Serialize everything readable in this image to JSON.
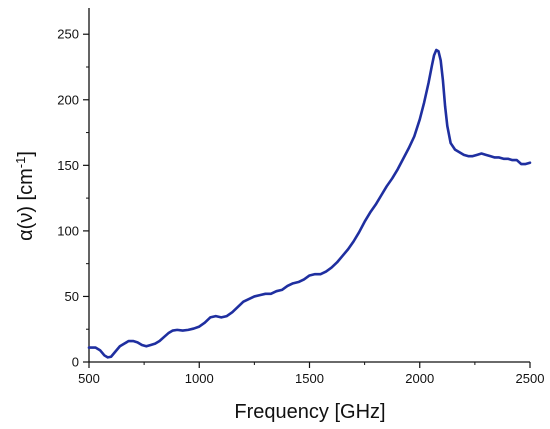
{
  "chart_data": {
    "type": "line",
    "title": "",
    "xlabel": "Frequency [GHz]",
    "ylabel_main": "α(ν) [cm",
    "ylabel_sup": "-1",
    "ylabel_close": "]",
    "xlim": [
      500,
      2500
    ],
    "ylim": [
      0,
      270
    ],
    "xticks": [
      500,
      1000,
      1500,
      2000,
      2500
    ],
    "yticks": [
      0,
      50,
      100,
      150,
      200,
      250
    ],
    "line_color": "#1f2fa0",
    "grid": false,
    "legend": "none",
    "series": [
      {
        "x": [
          500,
          530,
          550,
          570,
          585,
          600,
          620,
          640,
          660,
          680,
          700,
          720,
          740,
          760,
          780,
          800,
          820,
          840,
          860,
          880,
          900,
          925,
          950,
          975,
          1000,
          1025,
          1050,
          1075,
          1100,
          1125,
          1150,
          1175,
          1200,
          1225,
          1250,
          1275,
          1300,
          1325,
          1350,
          1375,
          1400,
          1425,
          1450,
          1475,
          1500,
          1525,
          1550,
          1575,
          1600,
          1625,
          1650,
          1675,
          1700,
          1725,
          1750,
          1775,
          1800,
          1825,
          1850,
          1875,
          1900,
          1925,
          1950,
          1975,
          2000,
          2020,
          2040,
          2055,
          2065,
          2075,
          2085,
          2095,
          2105,
          2115,
          2125,
          2140,
          2160,
          2180,
          2200,
          2220,
          2240,
          2260,
          2280,
          2300,
          2320,
          2340,
          2360,
          2380,
          2400,
          2420,
          2440,
          2460,
          2480,
          2500
        ],
        "y": [
          11,
          11,
          9,
          5,
          3.5,
          4,
          8,
          12,
          14,
          16,
          16,
          15,
          13,
          12,
          13,
          14,
          16,
          19,
          22,
          24,
          24.5,
          24,
          24.5,
          25.5,
          27,
          30,
          34,
          35,
          34,
          35,
          38,
          42,
          46,
          48,
          50,
          51,
          52,
          52,
          54,
          55,
          58,
          60,
          61,
          63,
          66,
          67,
          67,
          69,
          72,
          76,
          81,
          86,
          92,
          99,
          107,
          114,
          120,
          127,
          134,
          140,
          147,
          155,
          163,
          172,
          185,
          198,
          213,
          226,
          234,
          238,
          237,
          230,
          215,
          195,
          180,
          167,
          162,
          160,
          158,
          157,
          157,
          158,
          159,
          158,
          157,
          156,
          156,
          155,
          155,
          154,
          154,
          151,
          151,
          152
        ]
      }
    ]
  }
}
